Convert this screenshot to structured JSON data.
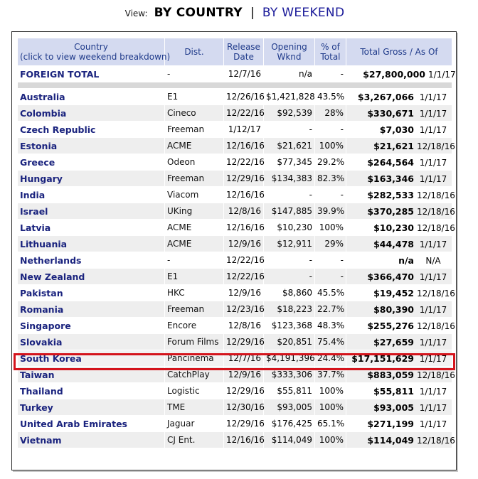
{
  "view": {
    "label": "View:",
    "current": "BY COUNTRY",
    "separator": "|",
    "link": "BY WEEKEND"
  },
  "columns": [
    "Country\n(click to view weekend breakdown)",
    "Dist.",
    "Release Date",
    "Opening Wknd",
    "% of Total",
    "Total Gross / As Of"
  ],
  "total": {
    "country": "FOREIGN TOTAL",
    "dist": "-",
    "release": "12/7/16",
    "opening": "n/a",
    "pct": "-",
    "gross": "$27,800,000",
    "asof": "1/1/17"
  },
  "rows": [
    {
      "country": "Australia",
      "dist": "E1",
      "release": "12/26/16",
      "opening": "$1,421,828",
      "pct": "43.5%",
      "gross": "$3,267,066",
      "asof": "1/1/17"
    },
    {
      "country": "Colombia",
      "dist": "Cineco",
      "release": "12/22/16",
      "opening": "$92,539",
      "pct": "28%",
      "gross": "$330,671",
      "asof": "1/1/17"
    },
    {
      "country": "Czech Republic",
      "dist": "Freeman",
      "release": "1/12/17",
      "opening": "-",
      "pct": "-",
      "gross": "$7,030",
      "asof": "1/1/17"
    },
    {
      "country": "Estonia",
      "dist": "ACME",
      "release": "12/16/16",
      "opening": "$21,621",
      "pct": "100%",
      "gross": "$21,621",
      "asof": "12/18/16"
    },
    {
      "country": "Greece",
      "dist": "Odeon",
      "release": "12/22/16",
      "opening": "$77,345",
      "pct": "29.2%",
      "gross": "$264,564",
      "asof": "1/1/17"
    },
    {
      "country": "Hungary",
      "dist": "Freeman",
      "release": "12/29/16",
      "opening": "$134,383",
      "pct": "82.3%",
      "gross": "$163,346",
      "asof": "1/1/17"
    },
    {
      "country": "India",
      "dist": "Viacom",
      "release": "12/16/16",
      "opening": "-",
      "pct": "-",
      "gross": "$282,533",
      "asof": "12/18/16"
    },
    {
      "country": "Israel",
      "dist": "UKing",
      "release": "12/8/16",
      "opening": "$147,885",
      "pct": "39.9%",
      "gross": "$370,285",
      "asof": "12/18/16"
    },
    {
      "country": "Latvia",
      "dist": "ACME",
      "release": "12/16/16",
      "opening": "$10,230",
      "pct": "100%",
      "gross": "$10,230",
      "asof": "12/18/16"
    },
    {
      "country": "Lithuania",
      "dist": "ACME",
      "release": "12/9/16",
      "opening": "$12,911",
      "pct": "29%",
      "gross": "$44,478",
      "asof": "1/1/17"
    },
    {
      "country": "Netherlands",
      "dist": "-",
      "release": "12/22/16",
      "opening": "-",
      "pct": "-",
      "gross": "n/a",
      "asof": "N/A"
    },
    {
      "country": "New Zealand",
      "dist": "E1",
      "release": "12/22/16",
      "opening": "-",
      "pct": "-",
      "gross": "$366,470",
      "asof": "1/1/17"
    },
    {
      "country": "Pakistan",
      "dist": "HKC",
      "release": "12/9/16",
      "opening": "$8,860",
      "pct": "45.5%",
      "gross": "$19,452",
      "asof": "12/18/16"
    },
    {
      "country": "Romania",
      "dist": "Freeman",
      "release": "12/23/16",
      "opening": "$18,223",
      "pct": "22.7%",
      "gross": "$80,390",
      "asof": "1/1/17"
    },
    {
      "country": "Singapore",
      "dist": "Encore",
      "release": "12/8/16",
      "opening": "$123,368",
      "pct": "48.3%",
      "gross": "$255,276",
      "asof": "12/18/16"
    },
    {
      "country": "Slovakia",
      "dist": "Forum Films",
      "release": "12/29/16",
      "opening": "$20,851",
      "pct": "75.4%",
      "gross": "$27,659",
      "asof": "1/1/17"
    },
    {
      "country": "South Korea",
      "dist": "Pancinema",
      "release": "12/7/16",
      "opening": "$4,191,396",
      "pct": "24.4%",
      "gross": "$17,151,629",
      "asof": "1/1/17"
    },
    {
      "country": "Taiwan",
      "dist": "CatchPlay",
      "release": "12/9/16",
      "opening": "$333,306",
      "pct": "37.7%",
      "gross": "$883,059",
      "asof": "12/18/16"
    },
    {
      "country": "Thailand",
      "dist": "Logistic",
      "release": "12/29/16",
      "opening": "$55,811",
      "pct": "100%",
      "gross": "$55,811",
      "asof": "1/1/17"
    },
    {
      "country": "Turkey",
      "dist": "TME",
      "release": "12/30/16",
      "opening": "$93,005",
      "pct": "100%",
      "gross": "$93,005",
      "asof": "1/1/17"
    },
    {
      "country": "United Arab Emirates",
      "dist": "Jaguar",
      "release": "12/29/16",
      "opening": "$176,425",
      "pct": "65.1%",
      "gross": "$271,199",
      "asof": "1/1/17"
    },
    {
      "country": "Vietnam",
      "dist": "CJ Ent.",
      "release": "12/16/16",
      "opening": "$114,049",
      "pct": "100%",
      "gross": "$114,049",
      "asof": "12/18/16"
    }
  ],
  "highlighted_country": "South Korea",
  "colors": {
    "header_bg": "#d4daf0",
    "header_text": "#1f3a8a",
    "country_text": "#1a237e",
    "highlight_border": "#d4141c",
    "stripe": "#eeeeee"
  }
}
